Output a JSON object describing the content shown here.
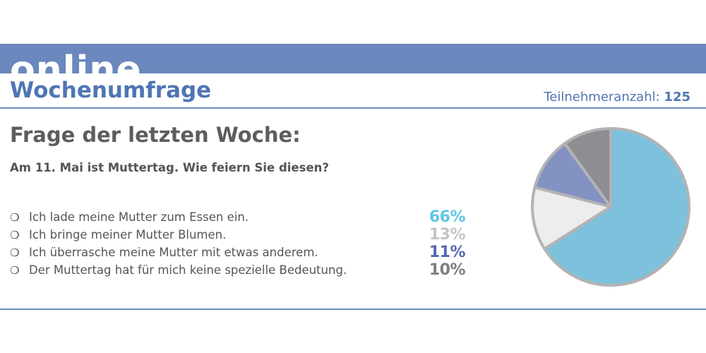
{
  "header": {
    "band_text": "online",
    "subtitle": "Wochenumfrage",
    "participants_label": "Teilnehmeranzahl:",
    "participants_count": "125"
  },
  "question": {
    "title": "Frage der letzten Woche:",
    "text": "Am 11. Mai ist Muttertag. Wie feiern Sie diesen?"
  },
  "bullet_glyph": "❍",
  "chart_data": {
    "type": "pie",
    "title": "",
    "unit": "%",
    "slices": [
      {
        "label": "Ich lade meine Mutter zum Essen ein.",
        "value": 66,
        "display": "66%",
        "color": "#7ec1dc"
      },
      {
        "label": "Ich bringe meiner Mutter Blumen.",
        "value": 13,
        "display": "13%",
        "color": "#ededed"
      },
      {
        "label": "Ich überrasche meine Mutter mit etwas anderem.",
        "value": 11,
        "display": "11%",
        "color": "#8391c3"
      },
      {
        "label": "Der Muttertag hat für mich keine spezielle Bedeutung.",
        "value": 10,
        "display": "10%",
        "color": "#8d8e92"
      }
    ],
    "percent_colors": [
      "#5ec6e6",
      "#c4c4c4",
      "#5569b0",
      "#7d7e82"
    ],
    "border_color": "#b3b3b3"
  },
  "colors": {
    "accent": "#6a88bd",
    "heading_blue": "#4f76b3",
    "text_gray": "#555555"
  }
}
